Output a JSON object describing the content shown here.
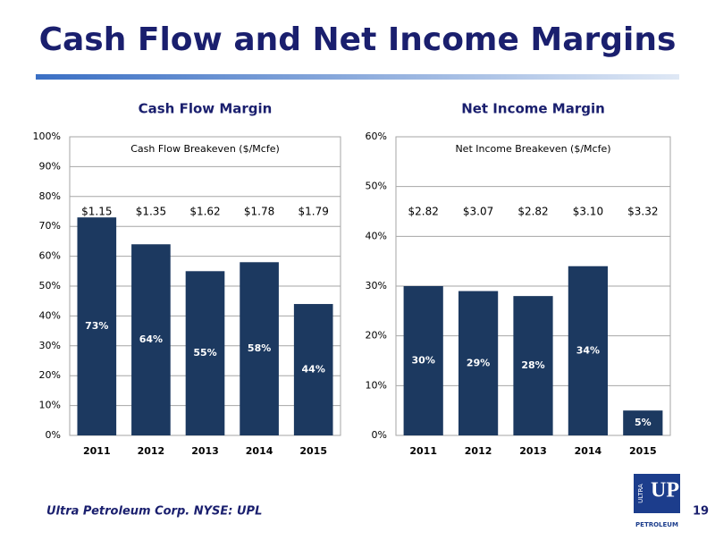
{
  "title": "Cash Flow and Net Income Margins",
  "chart_data": [
    {
      "type": "bar",
      "title": "Cash Flow Margin",
      "annotation": "Cash Flow Breakeven ($/Mcfe)",
      "categories": [
        "2011",
        "2012",
        "2013",
        "2014",
        "2015"
      ],
      "values": [
        73,
        64,
        55,
        58,
        44
      ],
      "value_labels": [
        "73%",
        "64%",
        "55%",
        "58%",
        "44%"
      ],
      "breakeven_labels": [
        "$1.15",
        "$1.35",
        "$1.62",
        "$1.78",
        "$1.79"
      ],
      "color": "#1c3960",
      "grid": true,
      "ylim": [
        0,
        100
      ],
      "yticks": [
        {
          "value": 0,
          "label": "0%"
        },
        {
          "value": 10,
          "label": "10%"
        },
        {
          "value": 20,
          "label": "20%"
        },
        {
          "value": 30,
          "label": "30%"
        },
        {
          "value": 40,
          "label": "40%"
        },
        {
          "value": 50,
          "label": "50%"
        },
        {
          "value": 60,
          "label": "60%"
        },
        {
          "value": 70,
          "label": "70%"
        },
        {
          "value": 80,
          "label": "80%"
        },
        {
          "value": 90,
          "label": "90%"
        },
        {
          "value": 100,
          "label": "100%"
        }
      ]
    },
    {
      "type": "bar",
      "title": "Net Income Margin",
      "annotation": "Net Income Breakeven ($/Mcfe)",
      "categories": [
        "2011",
        "2012",
        "2013",
        "2014",
        "2015"
      ],
      "values": [
        30,
        29,
        28,
        34,
        5
      ],
      "value_labels": [
        "30%",
        "29%",
        "28%",
        "34%",
        "5%"
      ],
      "breakeven_labels": [
        "$2.82",
        "$3.07",
        "$2.82",
        "$3.10",
        "$3.32"
      ],
      "color": "#1c3960",
      "grid": true,
      "ylim": [
        0,
        60
      ],
      "yticks": [
        {
          "value": 0,
          "label": "0%"
        },
        {
          "value": 10,
          "label": "10%"
        },
        {
          "value": 20,
          "label": "20%"
        },
        {
          "value": 30,
          "label": "30%"
        },
        {
          "value": 40,
          "label": "40%"
        },
        {
          "value": 50,
          "label": "50%"
        },
        {
          "value": 60,
          "label": "60%"
        }
      ]
    }
  ],
  "footer": "Ultra Petroleum Corp. NYSE: UPL",
  "page_number": "19",
  "logo": {
    "side": "ULTRA",
    "main": "UP",
    "bottom": "PETROLEUM"
  }
}
